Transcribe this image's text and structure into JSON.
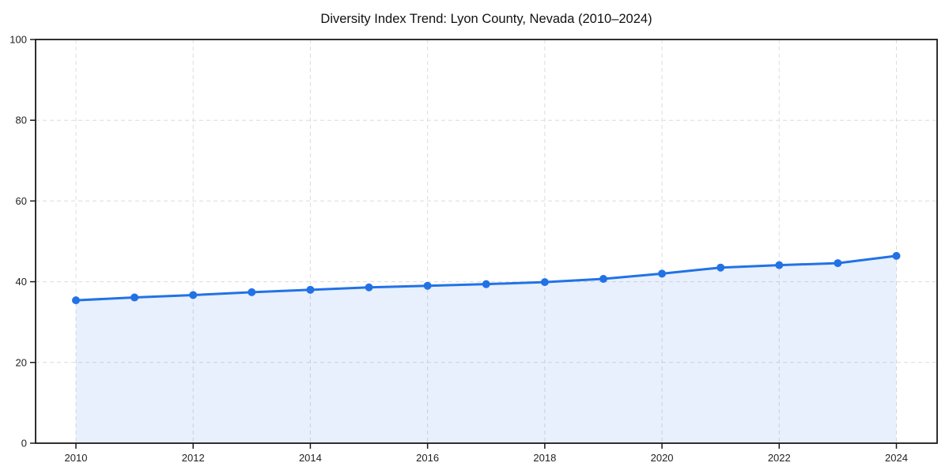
{
  "page": {
    "background_color": "#ffffff"
  },
  "chart_data": {
    "type": "line",
    "title": "Diversity Index Trend: Lyon County, Nevada (2010–2024)",
    "xlabel": "",
    "ylabel": "",
    "x": [
      2010,
      2011,
      2012,
      2013,
      2014,
      2015,
      2016,
      2017,
      2018,
      2019,
      2020,
      2021,
      2022,
      2023,
      2024
    ],
    "series": [
      {
        "name": "Diversity Index",
        "values": [
          35.4,
          36.1,
          36.7,
          37.4,
          38.0,
          38.6,
          39.0,
          39.4,
          39.9,
          40.7,
          42.0,
          43.5,
          44.1,
          44.6,
          46.4
        ]
      }
    ],
    "ylim": [
      0,
      100
    ],
    "yticks": [
      0,
      20,
      40,
      60,
      80,
      100
    ],
    "xticks": [
      2010,
      2012,
      2014,
      2016,
      2018,
      2020,
      2022,
      2024
    ],
    "grid": true,
    "grid_style": "dashed",
    "legend": false,
    "area_fill": true,
    "style": {
      "line_color": "#2272e6",
      "marker_color": "#2272e6",
      "fill_color": "rgba(34,114,230,0.11)",
      "grid_color": "#dcdcdc",
      "spine_color": "#1a1a1a",
      "tick_color": "#1a1a1a",
      "tick_label_color": "#1f1f1f",
      "title_color": "#111111",
      "line_width": 3,
      "marker_radius": 5
    }
  }
}
